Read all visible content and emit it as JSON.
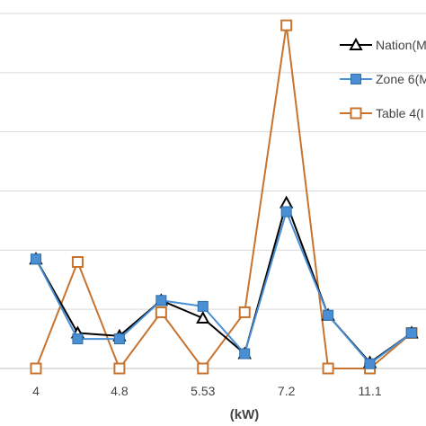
{
  "chart_data": {
    "type": "line",
    "xlabel": "(kW)",
    "ylabel": "",
    "x_tick_labels": [
      "4",
      "4.8",
      "5.53",
      "7.2",
      "11.1"
    ],
    "categories": [
      "4",
      "",
      "4.8",
      "",
      "5.53",
      "",
      "7.2",
      "",
      "11.1",
      ""
    ],
    "ylim": [
      0,
      6
    ],
    "grid": true,
    "legend_position": "top-right",
    "series": [
      {
        "name": "Nation(M",
        "color": "#000000",
        "marker": "triangle",
        "values": [
          1.85,
          0.6,
          0.55,
          1.15,
          0.85,
          0.25,
          2.8,
          0.9,
          0.1,
          0.6
        ]
      },
      {
        "name": "Zone 6(M",
        "color": "#4A8FD4",
        "marker": "square",
        "values": [
          1.85,
          0.5,
          0.5,
          1.15,
          1.05,
          0.25,
          2.65,
          0.9,
          0.08,
          0.6
        ]
      },
      {
        "name": "Table 4(I",
        "color": "#C8732E",
        "marker": "open-square",
        "values": [
          0,
          1.8,
          0,
          0.95,
          0,
          0.95,
          5.8,
          0,
          0,
          0.6
        ]
      }
    ]
  }
}
